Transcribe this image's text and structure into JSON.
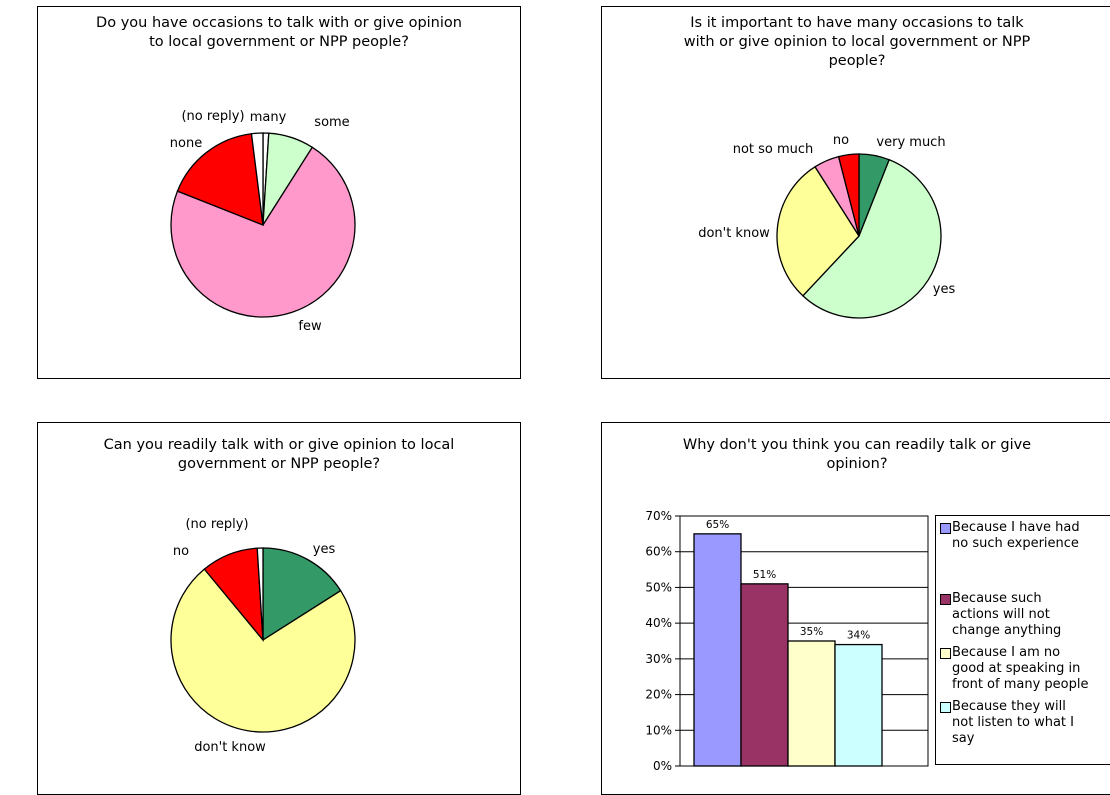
{
  "chart_data": [
    {
      "type": "pie",
      "title": "Do you have occasions to talk with or give opinion\nto local government or NPP people?",
      "slices": [
        {
          "label": "many",
          "value": 1,
          "color": "#ffffff"
        },
        {
          "label": "some",
          "value": 8,
          "color": "#ccffcc"
        },
        {
          "label": "few",
          "value": 72,
          "color": "#ff99cc"
        },
        {
          "label": "none",
          "value": 17,
          "color": "#ff0000"
        },
        {
          "label": "(no reply)",
          "value": 2,
          "color": "#ffffff"
        }
      ]
    },
    {
      "type": "pie",
      "title": "Is it important to have many occasions to talk\nwith or give opinion to local government or NPP\npeople?",
      "slices": [
        {
          "label": "very much",
          "value": 6,
          "color": "#339966"
        },
        {
          "label": "yes",
          "value": 56,
          "color": "#ccffcc"
        },
        {
          "label": "don't know",
          "value": 29,
          "color": "#ffff99"
        },
        {
          "label": "not so much",
          "value": 5,
          "color": "#ff99cc"
        },
        {
          "label": "no",
          "value": 4,
          "color": "#ff0000"
        }
      ]
    },
    {
      "type": "pie",
      "title": "Can you readily talk with or give opinion to local\ngovernment or NPP people?",
      "slices": [
        {
          "label": "yes",
          "value": 16,
          "color": "#339966"
        },
        {
          "label": "don't know",
          "value": 73,
          "color": "#ffff99"
        },
        {
          "label": "no",
          "value": 10,
          "color": "#ff0000"
        },
        {
          "label": "(no reply)",
          "value": 1,
          "color": "#ffffff"
        }
      ]
    },
    {
      "type": "bar",
      "title": "Why don't you think you can readily talk or give\nopinion?",
      "ylim": [
        0,
        70
      ],
      "yticks": [
        "0%",
        "10%",
        "20%",
        "30%",
        "40%",
        "50%",
        "60%",
        "70%"
      ],
      "grid": true,
      "legend_position": "right",
      "series": [
        {
          "name": "Because I have had\nno such experience",
          "value": 65,
          "label": "65%",
          "color": "#9999ff"
        },
        {
          "name": "Because such\nactions will not\nchange anything",
          "value": 51,
          "label": "51%",
          "color": "#993366"
        },
        {
          "name": "Because I am no\ngood at speaking in\nfront of many people",
          "value": 35,
          "label": "35%",
          "color": "#ffffcc"
        },
        {
          "name": "Because they will\nnot listen to what I\nsay",
          "value": 34,
          "label": "34%",
          "color": "#ccffff"
        }
      ]
    }
  ]
}
